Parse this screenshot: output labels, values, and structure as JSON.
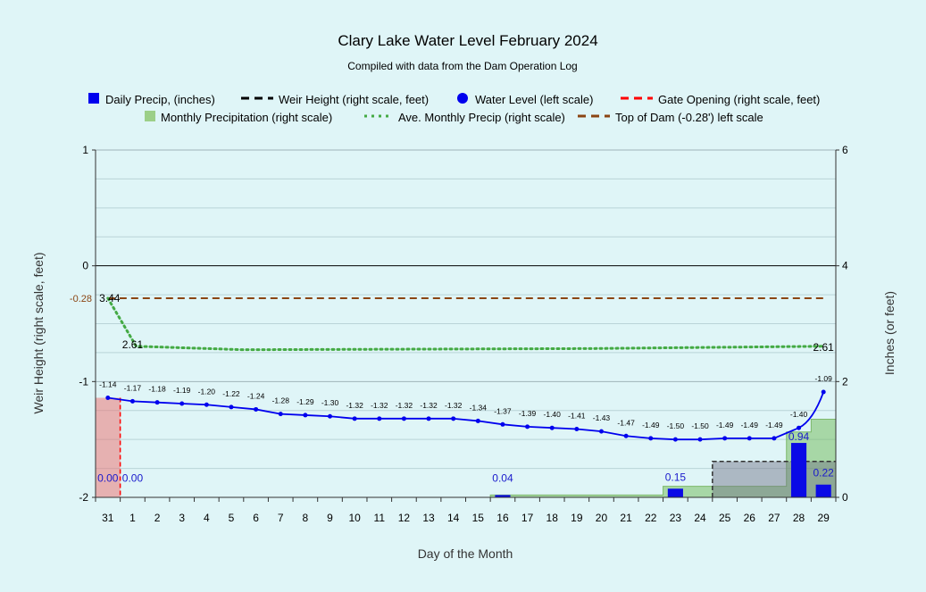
{
  "chart_data": {
    "type": "combo",
    "title": "Clary Lake Water Level February 2024",
    "subtitle": "Compiled with data from the Dam Operation Log",
    "xlabel": "Day of the Month",
    "ylabel_left": "Weir Height (right scale, feet)",
    "ylabel_right": "Inches (or feet)",
    "ylim_left": [
      -2,
      1
    ],
    "ylim_right": [
      0,
      6
    ],
    "yticks_left": [
      "1",
      "0",
      "-1",
      "-2"
    ],
    "yticks_right": [
      "6",
      "4",
      "2",
      "0"
    ],
    "categories": [
      "31",
      "1",
      "2",
      "3",
      "4",
      "5",
      "6",
      "7",
      "8",
      "9",
      "10",
      "11",
      "12",
      "13",
      "14",
      "15",
      "16",
      "17",
      "18",
      "19",
      "20",
      "21",
      "22",
      "23",
      "24",
      "25",
      "26",
      "27",
      "28",
      "29"
    ],
    "legend": [
      {
        "name": "Daily Precip, (inches)",
        "symbol": "square",
        "color": "#0000ee"
      },
      {
        "name": "Weir Height (right scale, feet)",
        "symbol": "dash",
        "color": "#000000"
      },
      {
        "name": "Water Level (left scale)",
        "symbol": "circle",
        "color": "#0000ee"
      },
      {
        "name": "Gate Opening (right scale, feet)",
        "symbol": "dash",
        "color": "#ff0000"
      },
      {
        "name": "Monthly Precipitation (right scale)",
        "symbol": "square",
        "color": "#9ccf88"
      },
      {
        "name": "Ave. Monthly Precip (right scale)",
        "symbol": "dots",
        "color": "#44aa44"
      },
      {
        "name": "Top of Dam (-0.28') left scale",
        "symbol": "dash",
        "color": "#8b4513"
      }
    ],
    "water_level": [
      -1.14,
      -1.17,
      -1.18,
      -1.19,
      -1.2,
      -1.22,
      -1.24,
      -1.28,
      -1.29,
      -1.3,
      -1.32,
      -1.32,
      -1.32,
      -1.32,
      -1.32,
      -1.34,
      -1.37,
      -1.39,
      -1.4,
      -1.41,
      -1.43,
      -1.47,
      -1.49,
      -1.5,
      -1.5,
      -1.49,
      -1.49,
      -1.49,
      -1.4,
      -1.09
    ],
    "water_level_labels": [
      "-1.14",
      "-1.17",
      "-1.18",
      "-1.19",
      "-1.20",
      "-1.22",
      "-1.24",
      "-1.28",
      "-1.29",
      "-1.30",
      "-1.32",
      "-1.32",
      "-1.32",
      "-1.32",
      "-1.32",
      "-1.34",
      "-1.37",
      "-1.39",
      "-1.40",
      "-1.41",
      "-1.43",
      "-1.47",
      "-1.49",
      "-1.50",
      "-1.50",
      "-1.49",
      "-1.49",
      "-1.49",
      "-1.40",
      "-1.09"
    ],
    "daily_precip": [
      {
        "day": "31",
        "value": 0.0,
        "label": "0.00"
      },
      {
        "day": "1",
        "value": 0.0,
        "label": "0.00"
      },
      {
        "day": "16",
        "value": 0.04,
        "label": "0.04"
      },
      {
        "day": "23",
        "value": 0.15,
        "label": "0.15"
      },
      {
        "day": "28",
        "value": 0.94,
        "label": "0.94"
      },
      {
        "day": "29",
        "value": 0.22,
        "label": "0.22"
      }
    ],
    "monthly_precip": [
      0,
      0,
      0,
      0,
      0,
      0,
      0,
      0,
      0,
      0,
      0,
      0,
      0,
      0,
      0,
      0,
      0.04,
      0.04,
      0.04,
      0.04,
      0.04,
      0.04,
      0.04,
      0.19,
      0.19,
      0.19,
      0.19,
      0.19,
      1.13,
      1.35
    ],
    "ave_monthly_precip": [
      {
        "day": "31",
        "value": 3.44,
        "label": "3.44"
      },
      {
        "day": "1",
        "value": 2.61,
        "label": "2.61"
      },
      {
        "day": "29",
        "value": 2.61,
        "label": "2.61"
      }
    ],
    "top_of_dam": -0.28,
    "top_of_dam_label": "-0.28",
    "weir_height": {
      "from_day": "25",
      "to_day": "29",
      "value": 0.62
    },
    "gate_opening": {
      "from_day": "31",
      "to_day": "31",
      "value": 1.72
    }
  }
}
